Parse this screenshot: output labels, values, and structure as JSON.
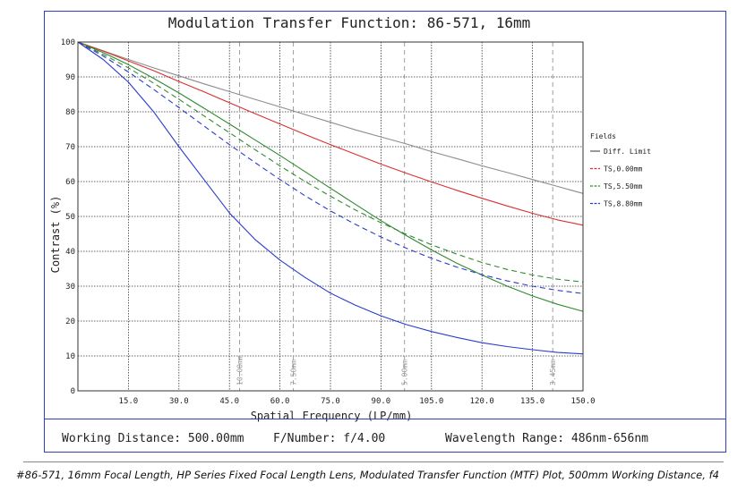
{
  "chart_data": {
    "type": "line",
    "title": "Modulation Transfer Function: 86-571, 16mm",
    "xlabel": "Spatial Frequency (LP/mm)",
    "ylabel": "Contrast (%)",
    "xlim": [
      0,
      150
    ],
    "ylim": [
      0,
      100
    ],
    "x_ticks": [
      "15.0",
      "30.0",
      "45.0",
      "60.0",
      "75.0",
      "90.0",
      "105.0",
      "120.0",
      "135.0",
      "150.0"
    ],
    "y_ticks": [
      "0",
      "10",
      "20",
      "30",
      "40",
      "50",
      "60",
      "70",
      "80",
      "90",
      "100"
    ],
    "x": [
      0,
      7.5,
      15,
      22.5,
      30,
      37.5,
      45,
      52.5,
      60,
      67.5,
      75,
      82.5,
      90,
      97.5,
      105,
      112.5,
      120,
      127.5,
      135,
      142.5,
      150
    ],
    "legend_title": "Fields",
    "series": [
      {
        "name": "Diff. Limit",
        "color": "#8c8c8c",
        "dash": "solid",
        "values": [
          100,
          97.5,
          95.0,
          92.6,
          90.3,
          88.0,
          85.8,
          83.6,
          81.4,
          79.2,
          77.0,
          74.8,
          72.8,
          70.8,
          68.6,
          66.6,
          64.5,
          62.6,
          60.6,
          58.6,
          56.6
        ]
      },
      {
        "name": "TS,0.00mm",
        "color": "#d83030",
        "dash": "solid",
        "values": [
          100,
          97.4,
          94.6,
          91.8,
          88.7,
          85.7,
          82.6,
          79.5,
          76.5,
          73.5,
          70.6,
          67.8,
          65.0,
          62.4,
          59.9,
          57.5,
          55.2,
          53.0,
          50.9,
          49.0,
          47.5
        ]
      },
      {
        "name": "TS,5.50mm",
        "color": "#2f8a2f",
        "dash": "solid",
        "values": [
          100,
          97.0,
          93.5,
          89.6,
          85.4,
          81.0,
          76.5,
          72.0,
          67.5,
          62.8,
          58.1,
          53.4,
          48.8,
          44.5,
          40.4,
          36.6,
          33.2,
          30.0,
          27.2,
          24.8,
          22.8
        ]
      },
      {
        "name": "TS,5.50mm",
        "color": "#2f8a2f",
        "dash": "dashed",
        "values": [
          100,
          96.5,
          92.6,
          88.2,
          83.6,
          78.8,
          74.0,
          69.2,
          64.5,
          60.0,
          55.8,
          51.8,
          48.2,
          44.9,
          41.9,
          39.2,
          36.8,
          34.8,
          33.2,
          32.0,
          31.2
        ]
      },
      {
        "name": "TS,8.80mm",
        "color": "#2a3bcf",
        "dash": "solid",
        "values": [
          100,
          95.0,
          88.5,
          80.0,
          70.0,
          60.5,
          51.0,
          43.5,
          37.5,
          32.5,
          28.0,
          24.5,
          21.5,
          19.0,
          17.0,
          15.3,
          13.8,
          12.7,
          11.8,
          11.0,
          10.6
        ]
      },
      {
        "name": "TS,8.80mm",
        "color": "#2a3bcf",
        "dash": "dashed",
        "values": [
          100,
          96.0,
          91.4,
          86.4,
          81.2,
          75.9,
          70.6,
          65.5,
          60.6,
          55.9,
          51.6,
          47.7,
          44.1,
          40.9,
          38.0,
          35.5,
          33.3,
          31.5,
          30.0,
          28.8,
          27.9
        ]
      }
    ],
    "legend_items": [
      {
        "label": "Diff. Limit",
        "color": "#555555",
        "dashed": false
      },
      {
        "label": "TS,0.00mm",
        "color": "#d83030",
        "dashed": true
      },
      {
        "label": "TS,5.50mm",
        "color": "#2f8a2f",
        "dashed": true
      },
      {
        "label": "TS,8.80mm",
        "color": "#2a3bcf",
        "dashed": true
      }
    ],
    "markers": [
      {
        "x": 48,
        "label": "10.00mm"
      },
      {
        "x": 64,
        "label": "7.50mm"
      },
      {
        "x": 97,
        "label": "5.00mm"
      },
      {
        "x": 141,
        "label": "3.45mm"
      }
    ],
    "grid": true,
    "legend_position": "right"
  },
  "footer": {
    "working_distance": "Working Distance: 500.00mm",
    "f_number": "F/Number: f/4.00",
    "wavelength": "Wavelength Range: 486nm-656nm"
  },
  "caption": "#86-571, 16mm Focal Length, HP Series Fixed Focal Length Lens, Modulated Transfer Function (MTF) Plot, 500mm Working Distance, f4"
}
